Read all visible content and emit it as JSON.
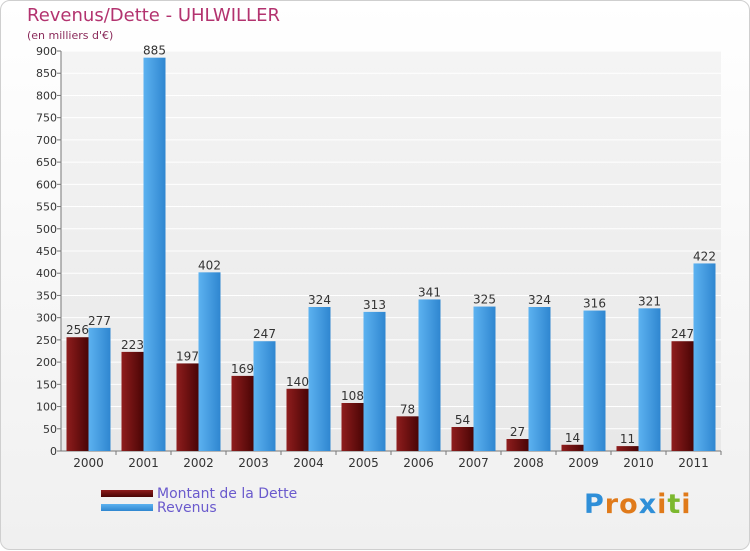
{
  "header": {
    "title": "Revenus/Dette - UHLWILLER",
    "subtitle": "(en milliers d'€)"
  },
  "legend": {
    "items": [
      {
        "label": "Montant de la Dette",
        "color": "#6b0f0f"
      },
      {
        "label": "Revenus",
        "color": "#4aa3e8"
      }
    ]
  },
  "logo": {
    "text": "Proxiti",
    "letters": [
      "P",
      "r",
      "o",
      "x",
      "i",
      "t",
      "i"
    ],
    "colors": [
      "#2f8fd8",
      "#e07a1a",
      "#e07a1a",
      "#2f8fd8",
      "#e07a1a",
      "#7cb82f",
      "#e07a1a"
    ]
  },
  "chart_data": {
    "type": "bar",
    "categories": [
      "2000",
      "2001",
      "2002",
      "2003",
      "2004",
      "2005",
      "2006",
      "2007",
      "2008",
      "2009",
      "2010",
      "2011"
    ],
    "series": [
      {
        "name": "Montant de la Dette",
        "color": "#6b0f0f",
        "values": [
          256,
          223,
          197,
          169,
          140,
          108,
          78,
          54,
          27,
          14,
          11,
          247
        ]
      },
      {
        "name": "Revenus",
        "color": "#4aa3e8",
        "values": [
          277,
          885,
          402,
          247,
          324,
          313,
          341,
          325,
          324,
          316,
          321,
          422
        ]
      }
    ],
    "ylim": [
      0,
      900
    ],
    "yticks": [
      0,
      50,
      100,
      150,
      200,
      250,
      300,
      350,
      400,
      450,
      500,
      550,
      600,
      650,
      700,
      750,
      800,
      850,
      900
    ],
    "grid": true
  }
}
